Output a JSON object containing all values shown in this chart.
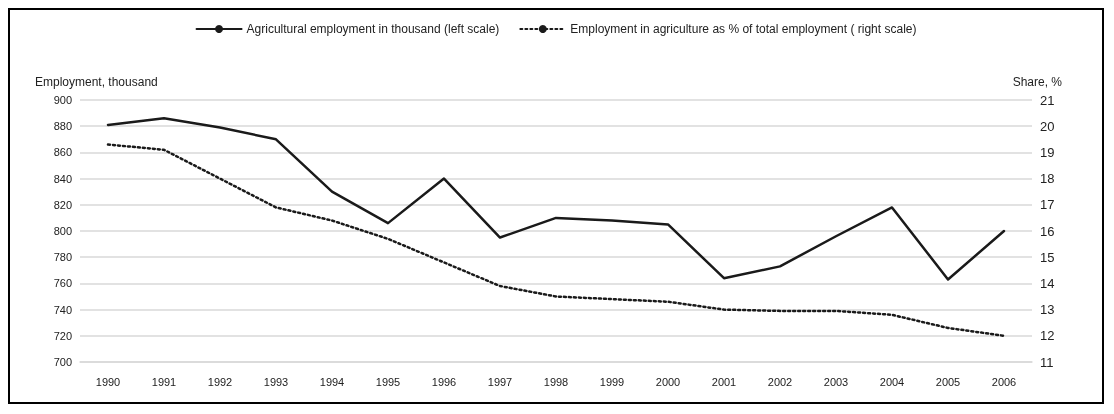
{
  "chart_data": {
    "type": "line",
    "xlabel": null,
    "ylabel": "Employment, thousand",
    "y2label": "Share, %",
    "categories": [
      "1990",
      "1991",
      "1992",
      "1993",
      "1994",
      "1995",
      "1996",
      "1997",
      "1998",
      "1999",
      "2000",
      "2001",
      "2002",
      "2003",
      "2004",
      "2005",
      "2006"
    ],
    "series": [
      {
        "name": "Agricultural employment in thousand (left scale)",
        "color": "#1a1a1a",
        "line_style": "solid",
        "values": [
          881,
          886,
          879,
          870,
          830,
          806,
          840,
          795,
          810,
          808,
          805,
          764,
          773,
          796,
          818,
          763,
          800
        ]
      },
      {
        "name": "Employment in agriculture as % of total employment ( right scale)",
        "color": "#1a1a1a",
        "line_style": "dotted",
        "axis": "y2",
        "values": [
          19.3,
          19.1,
          18.0,
          16.9,
          16.4,
          15.7,
          14.8,
          13.9,
          13.5,
          13.4,
          13.3,
          13.0,
          12.95,
          12.95,
          12.8,
          12.3,
          12.0
        ]
      }
    ],
    "ylim": [
      700,
      900
    ],
    "yticks": [
      700,
      720,
      740,
      760,
      780,
      800,
      820,
      840,
      860,
      880,
      900
    ],
    "y2lim": [
      11,
      21
    ],
    "y2ticks": [
      11,
      12,
      13,
      14,
      15,
      16,
      17,
      18,
      19,
      20,
      21
    ],
    "grid": "y",
    "legend": "top",
    "marker": "none"
  }
}
